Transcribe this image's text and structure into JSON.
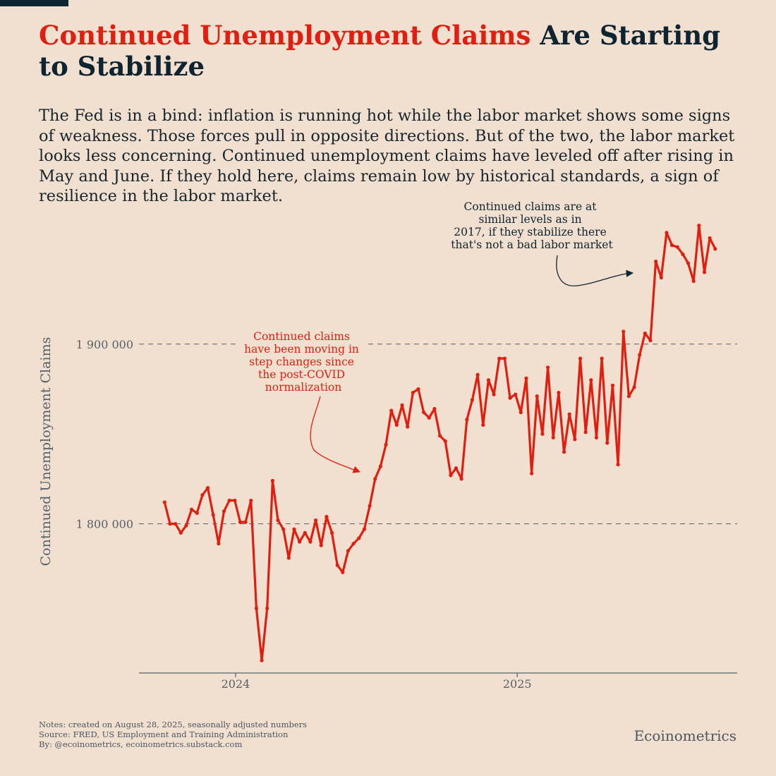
{
  "header": {
    "title_highlight": "Continued Unemployment Claims",
    "title_rest": " Are Starting to Stabilize",
    "subtitle": "The Fed is in a bind: inflation is running hot while the labor market shows some signs of weakness. Those forces pull in opposite directions. But of the two, the labor market looks less concerning. Continued unemployment claims have leveled off after rising in May and June. If they hold here, claims remain low by historical standards, a sign of resilience in the labor market."
  },
  "footer": {
    "notes": "Notes: created on August 28, 2025, seasonally adjusted numbers",
    "source": "Source: FRED, US Employment and Training Administration",
    "by": "By: @ecoinometrics, ecoinometrics.substack.com",
    "brand": "Ecoinometrics"
  },
  "colors": {
    "background": "#f1dfd0",
    "accent": "#e01f10",
    "navy": "#0e2431",
    "axis_text": "#55616a",
    "grid": "#55616a"
  },
  "chart_data": {
    "type": "line",
    "title": "Continued Unemployment Claims Are Starting to Stabilize",
    "xlabel": "",
    "ylabel": "Continued Unemployment Claims",
    "x_domain": [
      2023.657,
      2025.781
    ],
    "ylim": [
      1717000,
      1958000
    ],
    "y_ticks": [
      {
        "value": 1800000,
        "label": "1 800 000"
      },
      {
        "value": 1900000,
        "label": "1 900 000"
      }
    ],
    "x_ticks": [
      {
        "value": 2024.0,
        "label": "2024"
      },
      {
        "value": 2025.0,
        "label": "2025"
      }
    ],
    "grid": "horizontal dashed",
    "series": [
      {
        "name": "Continued claims",
        "start": 2023.748,
        "step_weeks": 1,
        "values": [
          1812000,
          1800000,
          1800000,
          1795000,
          1799000,
          1808000,
          1806000,
          1816000,
          1820000,
          1805000,
          1789000,
          1807000,
          1813000,
          1813000,
          1801000,
          1801000,
          1813000,
          1753000,
          1724000,
          1753000,
          1824000,
          1802000,
          1797000,
          1781000,
          1797000,
          1790000,
          1795000,
          1790000,
          1802000,
          1788000,
          1804000,
          1795000,
          1777000,
          1773000,
          1785000,
          1789000,
          1792000,
          1797000,
          1810000,
          1825000,
          1832000,
          1844000,
          1863000,
          1855000,
          1866000,
          1854000,
          1873000,
          1875000,
          1862000,
          1859000,
          1864000,
          1849000,
          1846000,
          1827000,
          1831000,
          1825000,
          1858000,
          1869000,
          1883000,
          1855000,
          1880000,
          1872000,
          1892000,
          1892000,
          1870000,
          1872000,
          1862000,
          1881000,
          1828000,
          1871000,
          1850000,
          1887000,
          1848000,
          1873000,
          1840000,
          1861000,
          1847000,
          1892000,
          1851000,
          1880000,
          1848000,
          1892000,
          1845000,
          1877000,
          1833000,
          1907000,
          1871000,
          1876000,
          1894000,
          1906000,
          1902000,
          1946000,
          1937000,
          1962000,
          1955000,
          1954000,
          1950000,
          1945000,
          1935000,
          1966000,
          1940000,
          1959000,
          1953000
        ]
      }
    ],
    "annotations": [
      {
        "text": [
          "Continued claims",
          "have been moving in",
          "step changes since",
          "the post-COVID",
          "normalization"
        ],
        "color": "accent"
      },
      {
        "text": [
          "Continued claims are at",
          "similar levels as in",
          "2017, if they stabilize there",
          "that's not a bad labor market"
        ],
        "color": "navy"
      }
    ]
  }
}
